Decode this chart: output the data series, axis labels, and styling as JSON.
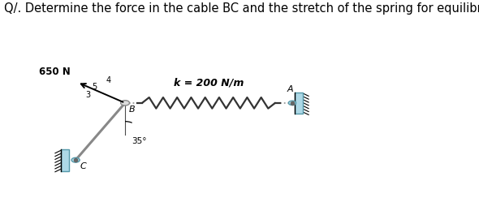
{
  "title": "Q/. Determine the force in the cable BC and the stretch of the spring for equilibrium.",
  "title_fontsize": 10.5,
  "bg_color": "#ffffff",
  "fig_width": 5.9,
  "fig_height": 2.44,
  "dpi": 100,
  "joint_B": [
    0.365,
    0.48
  ],
  "joint_C": [
    0.22,
    0.19
  ],
  "joint_A_wall": [
    0.855,
    0.48
  ],
  "force_label": "650 N",
  "k_label": "k = 200 N/m",
  "angle_label": "35°",
  "ratio_label_4": "4",
  "ratio_label_3": "3",
  "ratio_label_5": "5",
  "label_A": "A",
  "label_B": "B",
  "label_C": "C",
  "spring_color": "#333333",
  "rod_color": "#888888",
  "wall_color": "#add8e6",
  "wall_dark": "#5599aa",
  "dot_color": "#aaaaaa",
  "n_coils": 9
}
